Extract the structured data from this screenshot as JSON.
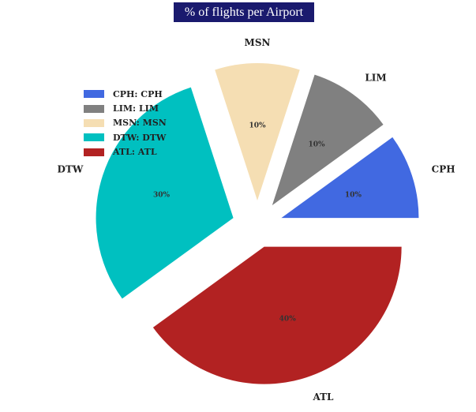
{
  "chart_data": {
    "type": "pie",
    "title": "% of flights per Airport",
    "slices": [
      {
        "label": "CPH",
        "legend": "CPH: CPH",
        "value": 10,
        "pct_label": "10%",
        "color": "#4169e1"
      },
      {
        "label": "LIM",
        "legend": "LIM: LIM",
        "value": 10,
        "pct_label": "10%",
        "color": "#808080"
      },
      {
        "label": "MSN",
        "legend": "MSN: MSN",
        "value": 10,
        "pct_label": "10%",
        "color": "#f5deb3"
      },
      {
        "label": "DTW",
        "legend": "DTW: DTW",
        "value": 30,
        "pct_label": "30%",
        "color": "#00c0c0"
      },
      {
        "label": "ATL",
        "legend": "ATL: ATL",
        "value": 40,
        "pct_label": "40%",
        "color": "#b22222"
      }
    ],
    "legend_position": "top-left",
    "exploded": true
  }
}
